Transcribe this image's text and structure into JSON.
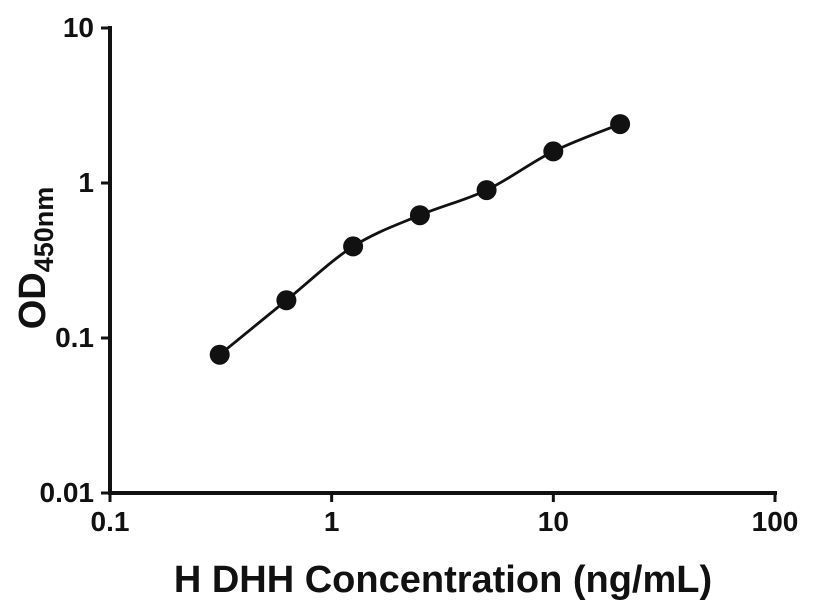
{
  "figure": {
    "background": "#ffffff",
    "axis_color": "#111111"
  },
  "chart_data": {
    "type": "scatter",
    "title": "",
    "xlabel": "H DHH Concentration (ng/mL)",
    "ylabel": "OD450nm",
    "ylabel_main": "OD",
    "ylabel_sub": "450nm",
    "x_scale": "log10",
    "y_scale": "log10",
    "xlim": [
      0.1,
      100
    ],
    "ylim": [
      0.01,
      10
    ],
    "x_ticks": [
      "0.1",
      "1",
      "10",
      "100"
    ],
    "y_ticks": [
      "0.01",
      "0.1",
      "1",
      "10"
    ],
    "grid": false,
    "legend": false,
    "series": [
      {
        "x": [
          0.3125,
          0.625,
          1.25,
          2.5,
          5,
          10,
          20
        ],
        "y": [
          0.078,
          0.175,
          0.39,
          0.62,
          0.9,
          1.6,
          2.4
        ],
        "marker": "circle",
        "marker_color": "#111111",
        "line": "smooth-fit-curve",
        "line_color": "#111111"
      }
    ]
  }
}
